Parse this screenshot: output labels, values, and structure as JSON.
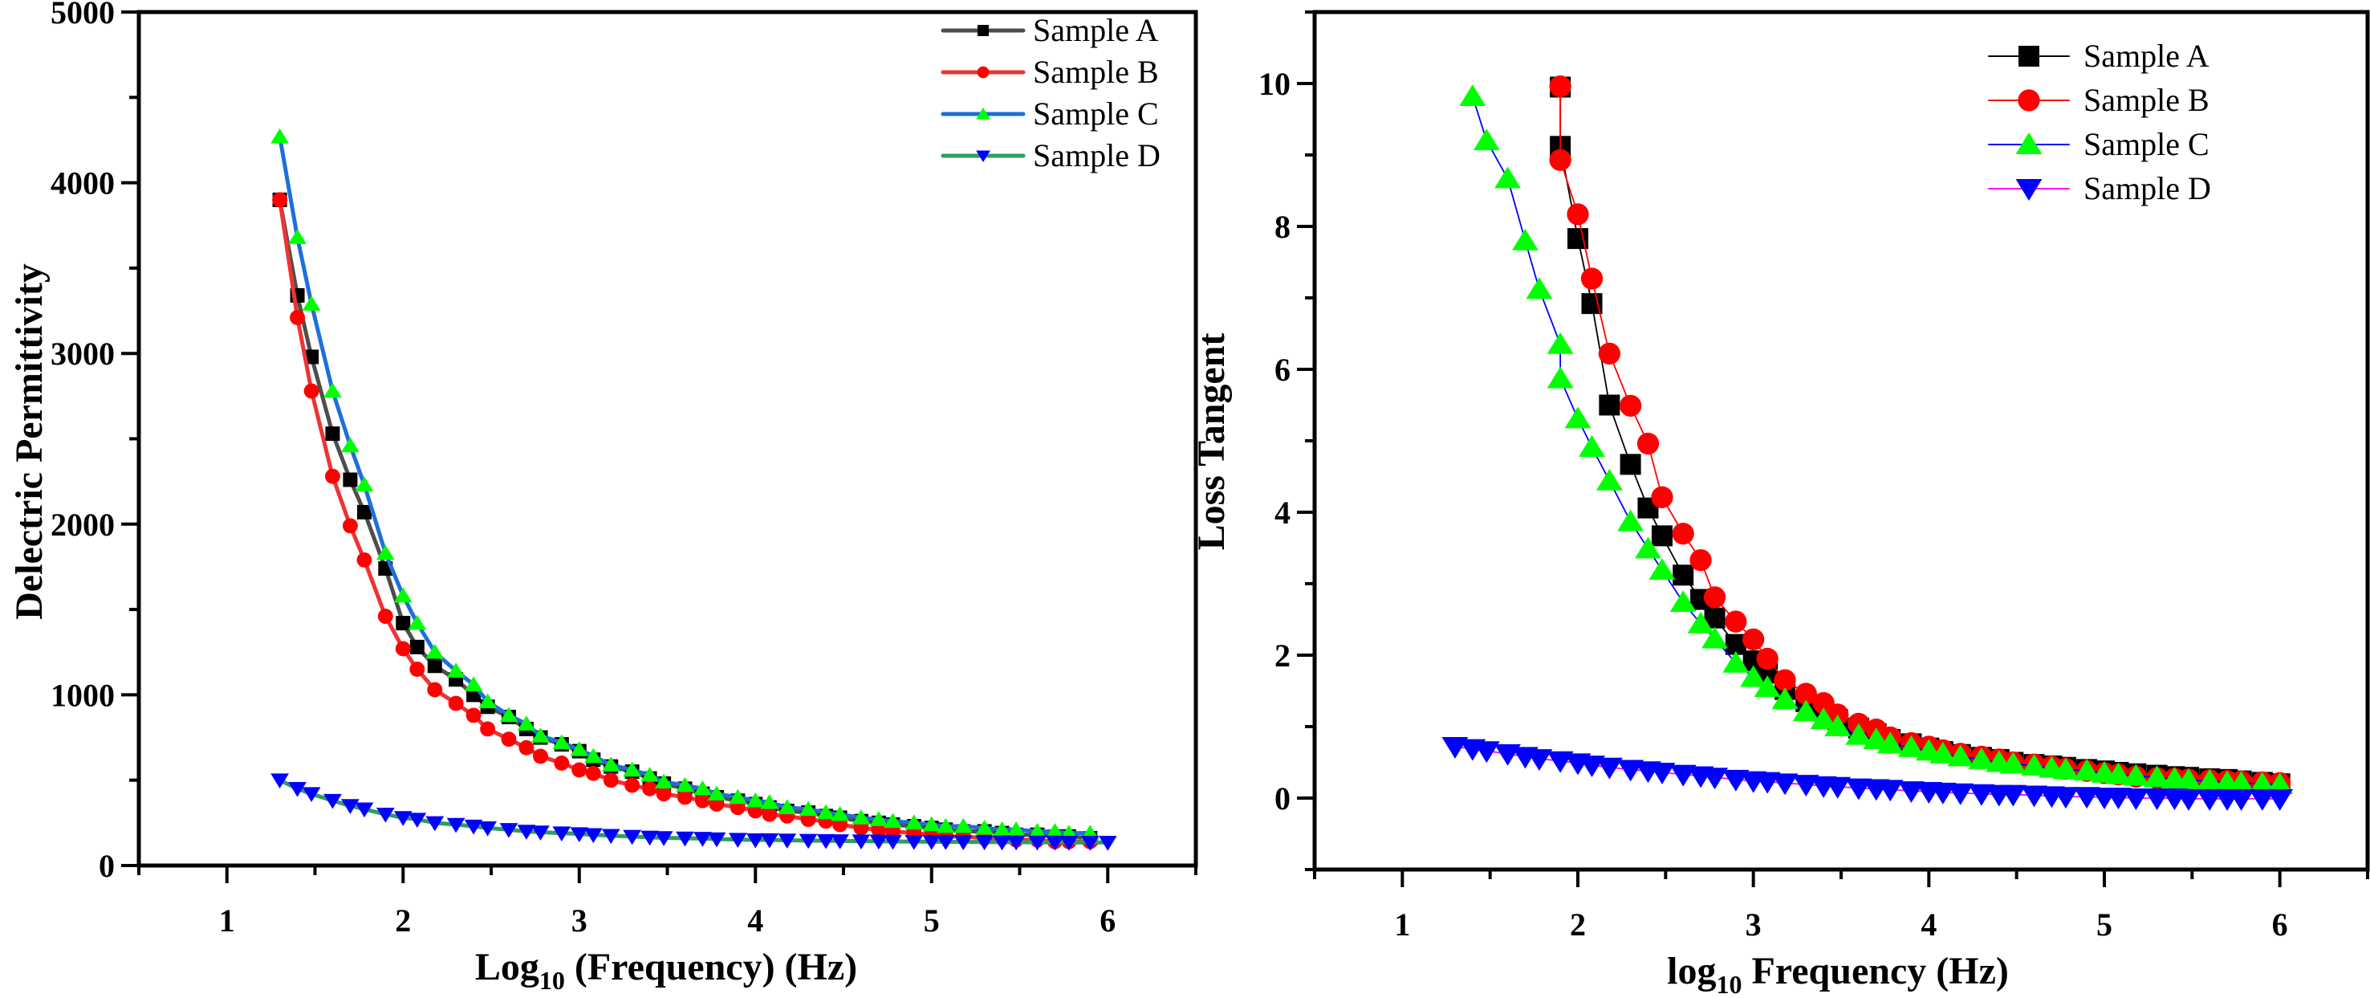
{
  "chart_data": [
    {
      "type": "line",
      "title": "",
      "xlabel": "Log10 (Frequency) (Hz)",
      "xlabel_parts": {
        "base": "Log",
        "sub": "10",
        "rest": " (Frequency) (Hz)"
      },
      "ylabel": "Delectric Permittivity",
      "xlim": [
        0.5,
        6.5
      ],
      "ylim": [
        0,
        5000
      ],
      "xticks": [
        1,
        2,
        3,
        4,
        5,
        6
      ],
      "xtick_labels": [
        "1",
        "2",
        "3",
        "4",
        "5",
        "6"
      ],
      "yticks": [
        0,
        1000,
        2000,
        3000,
        4000,
        5000
      ],
      "ytick_labels": [
        "0",
        "1000",
        "2000",
        "3000",
        "4000",
        "5000"
      ],
      "grid": false,
      "legend_position": "top-right",
      "series": [
        {
          "name": "Sample A",
          "line_color": "#4d4d4d",
          "marker": "square",
          "marker_color": "#000000",
          "x": [
            1.3,
            1.4,
            1.48,
            1.6,
            1.7,
            1.78,
            1.9,
            2.0,
            2.08,
            2.18,
            2.3,
            2.4,
            2.48,
            2.6,
            2.7,
            2.78,
            2.9,
            3.0,
            3.08,
            3.18,
            3.3,
            3.4,
            3.48,
            3.6,
            3.7,
            3.78,
            3.9,
            4.0,
            4.08,
            4.18,
            4.3,
            4.4,
            4.48,
            4.6,
            4.7,
            4.78,
            4.9,
            5.0,
            5.08,
            5.18,
            5.3,
            5.4,
            5.48,
            5.6,
            5.7,
            5.78,
            5.9
          ],
          "y": [
            3900,
            3340,
            2980,
            2530,
            2260,
            2070,
            1740,
            1420,
            1280,
            1170,
            1090,
            1000,
            930,
            870,
            800,
            750,
            710,
            670,
            620,
            580,
            550,
            510,
            480,
            450,
            420,
            400,
            380,
            360,
            340,
            320,
            310,
            290,
            280,
            260,
            250,
            240,
            230,
            220,
            210,
            200,
            200,
            190,
            180,
            180,
            170,
            170,
            160
          ]
        },
        {
          "name": "Sample B",
          "line_color": "#ee3333",
          "marker": "circle",
          "marker_color": "#ff0000",
          "x": [
            1.3,
            1.4,
            1.48,
            1.6,
            1.7,
            1.78,
            1.9,
            2.0,
            2.08,
            2.18,
            2.3,
            2.4,
            2.48,
            2.6,
            2.7,
            2.78,
            2.9,
            3.0,
            3.08,
            3.18,
            3.3,
            3.4,
            3.48,
            3.6,
            3.7,
            3.78,
            3.9,
            4.0,
            4.08,
            4.18,
            4.3,
            4.4,
            4.48,
            4.6,
            4.7,
            4.78,
            4.9,
            5.0,
            5.08,
            5.18,
            5.3,
            5.4,
            5.48,
            5.6,
            5.7,
            5.78,
            5.9
          ],
          "y": [
            3900,
            3210,
            2780,
            2280,
            1990,
            1790,
            1460,
            1270,
            1150,
            1030,
            950,
            880,
            800,
            740,
            690,
            640,
            600,
            560,
            540,
            500,
            470,
            450,
            420,
            400,
            380,
            360,
            340,
            320,
            300,
            290,
            270,
            260,
            240,
            220,
            210,
            200,
            190,
            180,
            170,
            170,
            160,
            160,
            150,
            150,
            140,
            140,
            140
          ]
        },
        {
          "name": "Sample C",
          "line_color": "#1e6fd9",
          "marker": "triangle-up",
          "marker_color": "#00ff00",
          "x": [
            1.3,
            1.4,
            1.48,
            1.6,
            1.7,
            1.78,
            1.9,
            2.0,
            2.08,
            2.18,
            2.3,
            2.4,
            2.48,
            2.6,
            2.7,
            2.78,
            2.9,
            3.0,
            3.08,
            3.18,
            3.3,
            3.4,
            3.48,
            3.6,
            3.7,
            3.78,
            3.9,
            4.0,
            4.08,
            4.18,
            4.3,
            4.4,
            4.48,
            4.6,
            4.7,
            4.78,
            4.9,
            5.0,
            5.08,
            5.18,
            5.3,
            5.4,
            5.48,
            5.6,
            5.7,
            5.78,
            5.9
          ],
          "y": [
            4270,
            3680,
            3290,
            2780,
            2460,
            2230,
            1830,
            1580,
            1420,
            1250,
            1140,
            1060,
            960,
            880,
            830,
            760,
            720,
            680,
            640,
            590,
            560,
            530,
            490,
            470,
            450,
            420,
            400,
            380,
            370,
            340,
            330,
            310,
            300,
            280,
            270,
            260,
            250,
            240,
            230,
            230,
            220,
            210,
            210,
            200,
            200,
            190,
            190
          ]
        },
        {
          "name": "Sample D",
          "line_color": "#2e9e5e",
          "marker": "triangle-down",
          "marker_color": "#0000ff",
          "x": [
            1.3,
            1.4,
            1.48,
            1.6,
            1.7,
            1.78,
            1.9,
            2.0,
            2.08,
            2.18,
            2.3,
            2.4,
            2.48,
            2.6,
            2.7,
            2.78,
            2.9,
            3.0,
            3.08,
            3.18,
            3.3,
            3.4,
            3.48,
            3.6,
            3.7,
            3.78,
            3.9,
            4.0,
            4.08,
            4.18,
            4.3,
            4.4,
            4.48,
            4.6,
            4.7,
            4.78,
            4.9,
            5.0,
            5.08,
            5.18,
            5.3,
            5.4,
            5.48,
            5.6,
            5.7,
            5.78,
            5.9,
            6.0
          ],
          "y": [
            500,
            450,
            420,
            380,
            350,
            330,
            300,
            280,
            270,
            250,
            240,
            230,
            220,
            210,
            200,
            195,
            190,
            185,
            180,
            175,
            170,
            165,
            162,
            160,
            158,
            155,
            152,
            150,
            150,
            148,
            146,
            145,
            144,
            143,
            142,
            141,
            140,
            140,
            139,
            138,
            138,
            137,
            137,
            136,
            136,
            135,
            135,
            135
          ]
        }
      ]
    },
    {
      "type": "line",
      "title": "",
      "xlabel": "log10 Frequency (Hz)",
      "xlabel_parts": {
        "base": "log",
        "sub": "10",
        "rest": " Frequency (Hz)"
      },
      "ylabel": "Loss Tangent",
      "xlim": [
        0.5,
        6.5
      ],
      "ylim": [
        -1,
        11
      ],
      "xticks": [
        1,
        2,
        3,
        4,
        5,
        6
      ],
      "xtick_labels": [
        "1",
        "2",
        "3",
        "4",
        "5",
        "6"
      ],
      "yticks": [
        0,
        2,
        4,
        6,
        8,
        10
      ],
      "ytick_labels": [
        "0",
        "2",
        "4",
        "6",
        "8",
        "10"
      ],
      "grid": false,
      "legend_position": "top-right",
      "series": [
        {
          "name": "Sample A",
          "line_color": "#000000",
          "marker": "square",
          "marker_color": "#000000",
          "x": [
            1.9,
            1.9,
            2.0,
            2.08,
            2.18,
            2.3,
            2.4,
            2.48,
            2.6,
            2.7,
            2.78,
            2.9,
            3.0,
            3.08,
            3.18,
            3.3,
            3.4,
            3.48,
            3.6,
            3.7,
            3.78,
            3.9,
            4.0,
            4.08,
            4.18,
            4.3,
            4.4,
            4.48,
            4.6,
            4.7,
            4.78,
            4.9,
            5.0,
            5.08,
            5.18,
            5.3,
            5.4,
            5.48,
            5.6,
            5.7,
            5.78,
            5.9,
            6.0
          ],
          "y": [
            9.95,
            9.12,
            7.83,
            6.92,
            5.5,
            4.67,
            4.06,
            3.67,
            3.12,
            2.78,
            2.52,
            2.15,
            1.92,
            1.75,
            1.52,
            1.35,
            1.22,
            1.1,
            0.98,
            0.9,
            0.82,
            0.76,
            0.7,
            0.65,
            0.61,
            0.57,
            0.54,
            0.5,
            0.47,
            0.45,
            0.43,
            0.4,
            0.38,
            0.36,
            0.34,
            0.32,
            0.3,
            0.29,
            0.27,
            0.26,
            0.24,
            0.22,
            0.2
          ]
        },
        {
          "name": "Sample B",
          "line_color": "#ff0000",
          "marker": "circle",
          "marker_color": "#ff0000",
          "x": [
            1.9,
            1.9,
            2.0,
            2.08,
            2.18,
            2.3,
            2.4,
            2.48,
            2.6,
            2.7,
            2.78,
            2.9,
            3.0,
            3.08,
            3.18,
            3.3,
            3.4,
            3.48,
            3.6,
            3.7,
            3.78,
            3.9,
            4.0,
            4.08,
            4.18,
            4.3,
            4.4,
            4.48,
            4.6,
            4.7,
            4.78,
            4.9,
            5.0,
            5.08,
            5.18,
            5.3,
            5.4,
            5.48,
            5.6,
            5.7,
            5.78,
            5.9,
            6.0
          ],
          "y": [
            9.96,
            8.93,
            8.17,
            7.27,
            6.22,
            5.49,
            4.96,
            4.21,
            3.7,
            3.33,
            2.81,
            2.47,
            2.22,
            1.95,
            1.65,
            1.46,
            1.33,
            1.17,
            1.04,
            0.96,
            0.85,
            0.77,
            0.72,
            0.67,
            0.62,
            0.58,
            0.54,
            0.5,
            0.47,
            0.44,
            0.41,
            0.38,
            0.35,
            0.33,
            0.3,
            0.28,
            0.27,
            0.26,
            0.25,
            0.24,
            0.23,
            0.22,
            0.21
          ]
        },
        {
          "name": "Sample C",
          "line_color": "#0000ff",
          "marker": "triangle-up",
          "marker_color": "#00ff00",
          "x": [
            1.4,
            1.48,
            1.6,
            1.7,
            1.78,
            1.9,
            1.9,
            2.0,
            2.08,
            2.18,
            2.3,
            2.4,
            2.48,
            2.6,
            2.7,
            2.78,
            2.9,
            3.0,
            3.08,
            3.18,
            3.3,
            3.4,
            3.48,
            3.6,
            3.7,
            3.78,
            3.9,
            4.0,
            4.08,
            4.18,
            4.3,
            4.4,
            4.48,
            4.6,
            4.7,
            4.78,
            4.9,
            5.0,
            5.08,
            5.18,
            5.3,
            5.4,
            5.48,
            5.6,
            5.7,
            5.78,
            5.9,
            6.0
          ],
          "y": [
            9.82,
            9.2,
            8.67,
            7.8,
            7.12,
            6.35,
            5.87,
            5.31,
            4.91,
            4.44,
            3.87,
            3.49,
            3.19,
            2.74,
            2.44,
            2.23,
            1.89,
            1.69,
            1.55,
            1.38,
            1.21,
            1.1,
            1.0,
            0.88,
            0.82,
            0.76,
            0.71,
            0.66,
            0.62,
            0.58,
            0.54,
            0.5,
            0.48,
            0.45,
            0.42,
            0.4,
            0.38,
            0.35,
            0.33,
            0.31,
            0.29,
            0.27,
            0.25,
            0.24,
            0.22,
            0.21,
            0.2,
            0.19
          ]
        },
        {
          "name": "Sample D",
          "line_color": "#ff00ff",
          "marker": "triangle-down",
          "marker_color": "#0000ff",
          "x": [
            1.3,
            1.4,
            1.48,
            1.6,
            1.7,
            1.78,
            1.9,
            2.0,
            2.08,
            2.18,
            2.3,
            2.4,
            2.48,
            2.6,
            2.7,
            2.78,
            2.9,
            3.0,
            3.08,
            3.18,
            3.3,
            3.4,
            3.48,
            3.6,
            3.7,
            3.78,
            3.9,
            4.0,
            4.08,
            4.18,
            4.3,
            4.4,
            4.48,
            4.6,
            4.7,
            4.78,
            4.9,
            5.0,
            5.08,
            5.18,
            5.3,
            5.4,
            5.48,
            5.6,
            5.7,
            5.78,
            5.9,
            6.0
          ],
          "y": [
            0.72,
            0.69,
            0.66,
            0.62,
            0.58,
            0.55,
            0.52,
            0.49,
            0.46,
            0.43,
            0.4,
            0.38,
            0.36,
            0.33,
            0.31,
            0.29,
            0.26,
            0.24,
            0.23,
            0.21,
            0.19,
            0.17,
            0.16,
            0.14,
            0.13,
            0.12,
            0.1,
            0.09,
            0.08,
            0.07,
            0.06,
            0.05,
            0.05,
            0.04,
            0.03,
            0.02,
            0.02,
            0.01,
            0.01,
            0.0,
            0.0,
            0.0,
            -0.01,
            -0.01,
            -0.01,
            -0.01,
            -0.01,
            -0.01
          ]
        }
      ]
    }
  ]
}
